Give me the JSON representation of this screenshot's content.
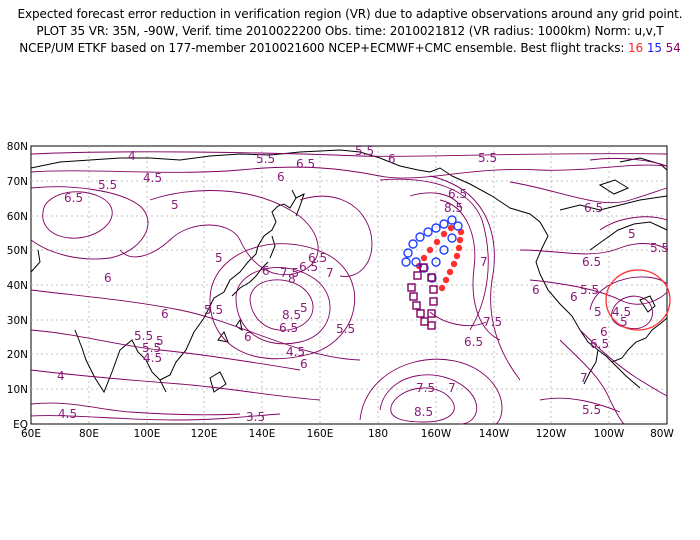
{
  "title": {
    "line1": "Expected forecast error reduction in verification region (VR) due to adaptive observations around any grid point.",
    "line2": "PLOT 35 VR: 35N, -90W, Verif. time 2010022200 Obs. time: 2010021812 (VR radius: 1000km) Norm: u,v,T",
    "line3_prefix": "NCEP/UM ETKF based on 177-member 2010021600 NCEP+ECMWF+CMC ensemble. Best flight tracks:",
    "track16": "16",
    "track15": "15",
    "track54": "54"
  },
  "colors": {
    "contour": "#800060",
    "coast": "#000000",
    "grid": "#b0b0b0",
    "track16": "#ff3030",
    "track15": "#2040ff",
    "track54": "#800060",
    "vr_circle": "#ff3030"
  },
  "axes": {
    "x_ticks": [
      "60E",
      "80E",
      "100E",
      "120E",
      "140E",
      "160E",
      "180",
      "160W",
      "140W",
      "120W",
      "100W",
      "80W"
    ],
    "y_ticks": [
      "EQ",
      "10N",
      "20N",
      "30N",
      "40N",
      "50N",
      "60N",
      "70N",
      "80N"
    ]
  },
  "labels": {
    "c1": "5.5",
    "c2": "6",
    "c3": "4",
    "c4": "4.5",
    "c5": "5.5",
    "c6": "6.5",
    "c7": "5",
    "c8": "5.5",
    "c9": "6",
    "c10": "6.5",
    "c11": "5",
    "c12": "5.5",
    "c13": "6",
    "c14": "5.5",
    "c15": "6",
    "c16": "6.5",
    "c17": "6",
    "c18": "5",
    "c19": "6",
    "c20": "7",
    "c21": "7.5",
    "c22": "8",
    "c23": "6.5",
    "c24": "8.5",
    "c25": "6.5",
    "c26": "5.5",
    "c27": "6",
    "c28": "5.5",
    "c29": "5",
    "c30": "4.5",
    "c31": "4",
    "c32": "4.5",
    "c33": "3.5",
    "c34": "4.5",
    "c35": "8.5",
    "c36": "6.5",
    "c37": "5.5",
    "c38": "8.5",
    "c39": "7.5",
    "c40": "7",
    "c41": "7.5",
    "c42": "6.5",
    "c43": "7",
    "c44": "6",
    "c45": "6.5",
    "c46": "6",
    "c47": "5.5",
    "c48": "5",
    "c49": "4.5",
    "c50": "5",
    "c51": "6.5",
    "c52": "6",
    "c53": "5.5",
    "c54": "7",
    "c55": "6.5",
    "c56": "5.5",
    "c57": "5"
  }
}
